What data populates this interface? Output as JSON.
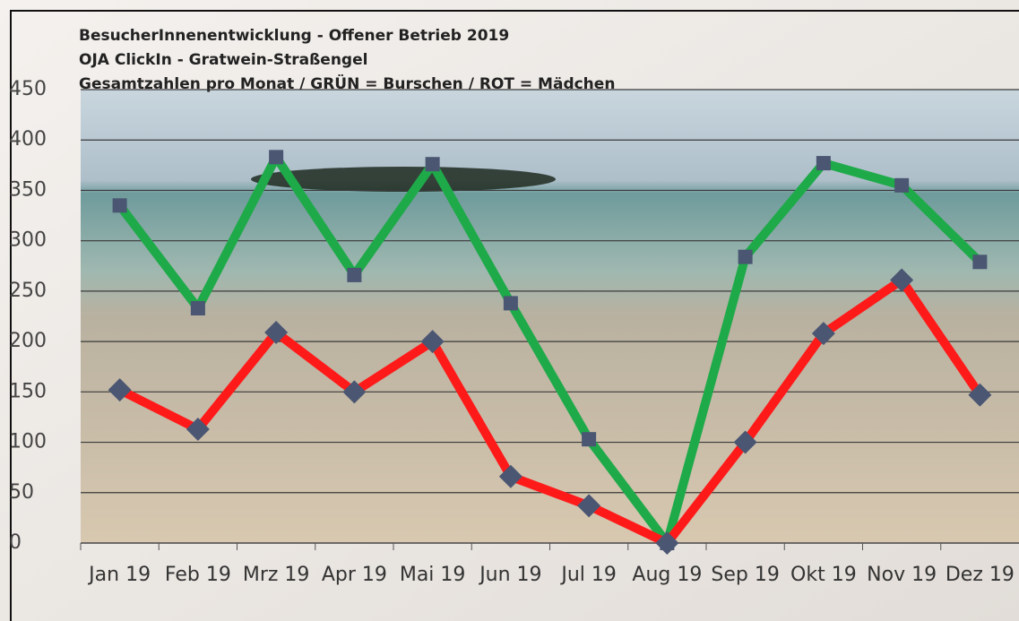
{
  "chart_data": {
    "type": "line",
    "title": "BesucherInnenentwicklung - Offener Betrieb 2019",
    "subtitle": "OJA ClickIn - Gratwein-Straßengel",
    "annotation": "Gesamtzahlen pro Monat / GRÜN = Burschen / ROT = Mädchen",
    "categories": [
      "Jan 19",
      "Feb 19",
      "Mrz 19",
      "Apr 19",
      "Mai 19",
      "Jun 19",
      "Jul 19",
      "Aug 19",
      "Sep 19",
      "Okt 19",
      "Nov 19",
      "Dez 19"
    ],
    "series": [
      {
        "color": "#1faa4a",
        "marker": "square",
        "values": [
          335,
          233,
          383,
          266,
          376,
          238,
          103,
          0,
          284,
          377,
          355,
          279
        ]
      },
      {
        "color": "#ff1a1a",
        "marker": "diamond",
        "values": [
          152,
          113,
          209,
          150,
          200,
          66,
          37,
          0,
          100,
          208,
          261,
          147
        ]
      }
    ],
    "ylim": [
      0,
      450
    ],
    "yticks": [
      0,
      50,
      100,
      150,
      200,
      250,
      300,
      350,
      400,
      450
    ],
    "grid": true
  }
}
